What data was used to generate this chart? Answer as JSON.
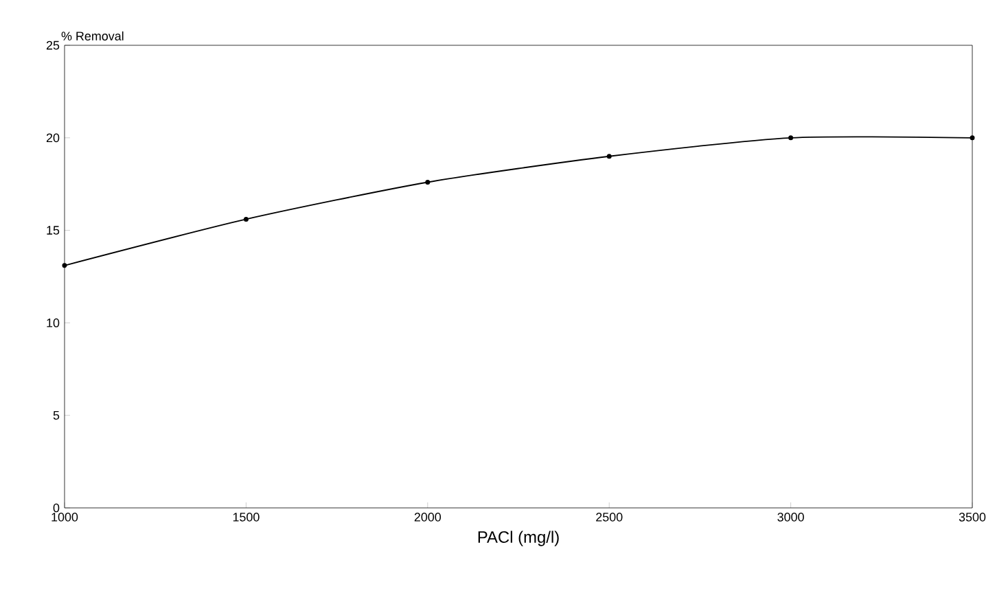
{
  "chart_data": {
    "type": "line",
    "xlabel": "PACl (mg/l)",
    "ylabel": "% Removal",
    "x": [
      1000,
      1500,
      2000,
      2500,
      3000,
      3500
    ],
    "series": [
      {
        "color": "#000000",
        "values": [
          13.1,
          15.6,
          17.6,
          19.0,
          20.0,
          20.0
        ]
      }
    ],
    "xlim": [
      1000,
      3500
    ],
    "xticks": [
      1000,
      1500,
      2000,
      2500,
      3000,
      3500
    ],
    "ylim": [
      0,
      25
    ],
    "yticks": [
      0,
      5,
      10,
      15,
      20,
      25
    ],
    "grid": false,
    "marker": "circle",
    "line_style": "solid"
  }
}
